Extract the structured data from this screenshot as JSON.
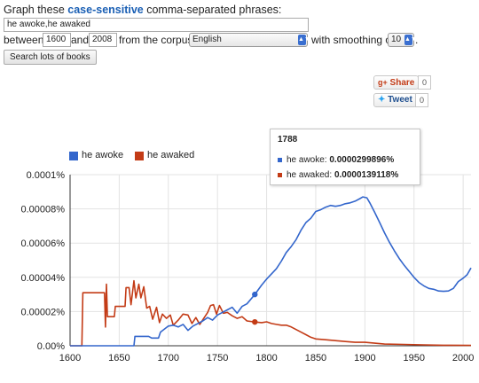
{
  "header": {
    "prefix": "Graph these ",
    "highlight": "case-sensitive",
    "suffix": " comma-separated phrases:"
  },
  "query": {
    "value": "he awoke,he awaked"
  },
  "range": {
    "between_label": "between",
    "start": "1600",
    "and_label": "and",
    "end": "2008",
    "corpus_label": "from the corpus",
    "corpus": "English",
    "smoothing_label": "with smoothing of",
    "smoothing": "10",
    "period": "."
  },
  "search_button": "Search lots of books",
  "social": {
    "share_label": "Share",
    "share_count": "0",
    "tweet_label": "Tweet",
    "tweet_count": "0"
  },
  "legend": [
    {
      "name": "he awoke",
      "color": "#3366cc"
    },
    {
      "name": "he awaked",
      "color": "#c33b16"
    }
  ],
  "tooltip": {
    "year": "1788",
    "rows": [
      {
        "label": "he awoke:",
        "value": "0.0000299896%",
        "color": "#3366cc"
      },
      {
        "label": "he awaked:",
        "value": "0.0000139118%",
        "color": "#c33b16"
      }
    ]
  },
  "chart_data": {
    "type": "line",
    "x_ticks": [
      "1600",
      "1650",
      "1700",
      "1750",
      "1800",
      "1850",
      "1900",
      "1950",
      "2000"
    ],
    "y_ticks": [
      "0.00%",
      "0.00002%",
      "0.00004%",
      "0.00006%",
      "0.00008%",
      "0.0001%"
    ],
    "xlim": [
      1600,
      2008
    ],
    "ylim": [
      0,
      0.0001
    ],
    "grid": true,
    "legend_position": "top-left",
    "series": [
      {
        "name": "he awoke",
        "color": "#3366cc",
        "points": [
          [
            1600,
            0
          ],
          [
            1665,
            0
          ],
          [
            1666,
            5.5e-06
          ],
          [
            1680,
            5.5e-06
          ],
          [
            1683,
            4.5e-06
          ],
          [
            1690,
            4.5e-06
          ],
          [
            1692,
            8e-06
          ],
          [
            1700,
            1.15e-05
          ],
          [
            1705,
            1.2e-05
          ],
          [
            1710,
            1.1e-05
          ],
          [
            1715,
            1.25e-05
          ],
          [
            1720,
            9e-06
          ],
          [
            1725,
            1.15e-05
          ],
          [
            1730,
            1.3e-05
          ],
          [
            1735,
            1.45e-05
          ],
          [
            1740,
            1.65e-05
          ],
          [
            1745,
            1.5e-05
          ],
          [
            1750,
            1.8e-05
          ],
          [
            1755,
            1.95e-05
          ],
          [
            1760,
            2.1e-05
          ],
          [
            1765,
            2.25e-05
          ],
          [
            1770,
            1.9e-05
          ],
          [
            1775,
            2.3e-05
          ],
          [
            1780,
            2.45e-05
          ],
          [
            1788,
            2.99896e-05
          ],
          [
            1795,
            3.55e-05
          ],
          [
            1800,
            3.9e-05
          ],
          [
            1805,
            4.2e-05
          ],
          [
            1810,
            4.5e-05
          ],
          [
            1815,
            4.95e-05
          ],
          [
            1820,
            5.45e-05
          ],
          [
            1825,
            5.8e-05
          ],
          [
            1830,
            6.2e-05
          ],
          [
            1835,
            6.75e-05
          ],
          [
            1840,
            7.2e-05
          ],
          [
            1845,
            7.45e-05
          ],
          [
            1850,
            7.85e-05
          ],
          [
            1855,
            7.95e-05
          ],
          [
            1860,
            8.1e-05
          ],
          [
            1865,
            8.2e-05
          ],
          [
            1870,
            8.15e-05
          ],
          [
            1875,
            8.2e-05
          ],
          [
            1880,
            8.3e-05
          ],
          [
            1885,
            8.35e-05
          ],
          [
            1890,
            8.45e-05
          ],
          [
            1895,
            8.6e-05
          ],
          [
            1898,
            8.7e-05
          ],
          [
            1902,
            8.65e-05
          ],
          [
            1905,
            8.35e-05
          ],
          [
            1910,
            7.8e-05
          ],
          [
            1915,
            7.2e-05
          ],
          [
            1920,
            6.6e-05
          ],
          [
            1925,
            6.05e-05
          ],
          [
            1930,
            5.55e-05
          ],
          [
            1935,
            5.1e-05
          ],
          [
            1940,
            4.7e-05
          ],
          [
            1945,
            4.35e-05
          ],
          [
            1950,
            4e-05
          ],
          [
            1955,
            3.7e-05
          ],
          [
            1960,
            3.5e-05
          ],
          [
            1965,
            3.35e-05
          ],
          [
            1970,
            3.3e-05
          ],
          [
            1975,
            3.2e-05
          ],
          [
            1980,
            3.18e-05
          ],
          [
            1985,
            3.2e-05
          ],
          [
            1990,
            3.35e-05
          ],
          [
            1995,
            3.75e-05
          ],
          [
            2000,
            3.95e-05
          ],
          [
            2004,
            4.15e-05
          ],
          [
            2008,
            4.55e-05
          ]
        ]
      },
      {
        "name": "he awaked",
        "color": "#c33b16",
        "points": [
          [
            1600,
            0
          ],
          [
            1612,
            0
          ],
          [
            1613,
            3.1e-05
          ],
          [
            1635,
            3.1e-05
          ],
          [
            1636,
            1.1e-05
          ],
          [
            1637,
            3.6e-05
          ],
          [
            1638,
            1.7e-05
          ],
          [
            1645,
            1.7e-05
          ],
          [
            1646,
            2.3e-05
          ],
          [
            1656,
            2.3e-05
          ],
          [
            1657,
            3.4e-05
          ],
          [
            1660,
            3.4e-05
          ],
          [
            1662,
            2.4e-05
          ],
          [
            1665,
            3.8e-05
          ],
          [
            1667,
            2.8e-05
          ],
          [
            1670,
            3.6e-05
          ],
          [
            1672,
            2.8e-05
          ],
          [
            1675,
            3.45e-05
          ],
          [
            1678,
            2.2e-05
          ],
          [
            1681,
            2.3e-05
          ],
          [
            1684,
            1.55e-05
          ],
          [
            1688,
            2.25e-05
          ],
          [
            1691,
            1.35e-05
          ],
          [
            1694,
            1.85e-05
          ],
          [
            1698,
            1.6e-05
          ],
          [
            1702,
            1.8e-05
          ],
          [
            1705,
            1.2e-05
          ],
          [
            1710,
            1.5e-05
          ],
          [
            1715,
            1.85e-05
          ],
          [
            1720,
            1.8e-05
          ],
          [
            1724,
            1.3e-05
          ],
          [
            1728,
            1.65e-05
          ],
          [
            1732,
            1.25e-05
          ],
          [
            1736,
            1.6e-05
          ],
          [
            1740,
            1.95e-05
          ],
          [
            1743,
            2.35e-05
          ],
          [
            1746,
            2.4e-05
          ],
          [
            1749,
            1.85e-05
          ],
          [
            1752,
            2.35e-05
          ],
          [
            1756,
            1.9e-05
          ],
          [
            1760,
            1.95e-05
          ],
          [
            1765,
            1.75e-05
          ],
          [
            1770,
            1.6e-05
          ],
          [
            1775,
            1.7e-05
          ],
          [
            1780,
            1.45e-05
          ],
          [
            1788,
            1.39118e-05
          ],
          [
            1795,
            1.35e-05
          ],
          [
            1800,
            1.4e-05
          ],
          [
            1805,
            1.3e-05
          ],
          [
            1810,
            1.25e-05
          ],
          [
            1815,
            1.2e-05
          ],
          [
            1820,
            1.2e-05
          ],
          [
            1825,
            1.1e-05
          ],
          [
            1830,
            9.5e-06
          ],
          [
            1835,
            8e-06
          ],
          [
            1840,
            6.5e-06
          ],
          [
            1845,
            5e-06
          ],
          [
            1850,
            4e-06
          ],
          [
            1860,
            3.5e-06
          ],
          [
            1870,
            3e-06
          ],
          [
            1880,
            2.5e-06
          ],
          [
            1890,
            2e-06
          ],
          [
            1900,
            2e-06
          ],
          [
            1910,
            1.5e-06
          ],
          [
            1920,
            1e-06
          ],
          [
            1940,
            8e-07
          ],
          [
            1960,
            5e-07
          ],
          [
            1980,
            3e-07
          ],
          [
            2008,
            2e-07
          ]
        ]
      }
    ],
    "highlight_x": 1788
  }
}
